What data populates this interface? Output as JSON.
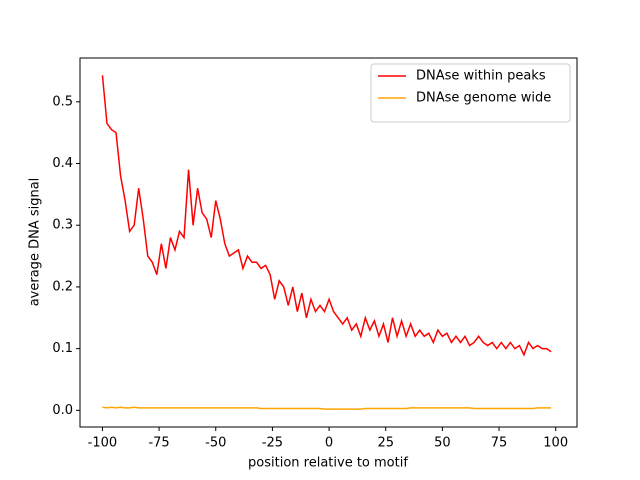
{
  "chart_data": {
    "type": "line",
    "xlabel": "position relative to motif",
    "ylabel": "average DNA signal",
    "x": [
      -100,
      -98,
      -96,
      -94,
      -92,
      -90,
      -88,
      -86,
      -84,
      -82,
      -80,
      -78,
      -76,
      -74,
      -72,
      -70,
      -68,
      -66,
      -64,
      -62,
      -60,
      -58,
      -56,
      -54,
      -52,
      -50,
      -48,
      -46,
      -44,
      -42,
      -40,
      -38,
      -36,
      -34,
      -32,
      -30,
      -28,
      -26,
      -24,
      -22,
      -20,
      -18,
      -16,
      -14,
      -12,
      -10,
      -8,
      -6,
      -4,
      -2,
      0,
      2,
      4,
      6,
      8,
      10,
      12,
      14,
      16,
      18,
      20,
      22,
      24,
      26,
      28,
      30,
      32,
      34,
      36,
      38,
      40,
      42,
      44,
      46,
      48,
      50,
      52,
      54,
      56,
      58,
      60,
      62,
      64,
      66,
      68,
      70,
      72,
      74,
      76,
      78,
      80,
      82,
      84,
      86,
      88,
      90,
      92,
      94,
      96,
      98
    ],
    "series": [
      {
        "name": "DNAse within peaks",
        "color": "#ff0000",
        "values": [
          0.543,
          0.465,
          0.455,
          0.45,
          0.38,
          0.34,
          0.29,
          0.3,
          0.36,
          0.31,
          0.25,
          0.24,
          0.22,
          0.27,
          0.23,
          0.28,
          0.26,
          0.29,
          0.28,
          0.39,
          0.3,
          0.36,
          0.32,
          0.31,
          0.28,
          0.34,
          0.31,
          0.27,
          0.25,
          0.255,
          0.26,
          0.23,
          0.25,
          0.24,
          0.24,
          0.23,
          0.235,
          0.22,
          0.18,
          0.21,
          0.2,
          0.17,
          0.2,
          0.16,
          0.19,
          0.15,
          0.18,
          0.16,
          0.17,
          0.16,
          0.18,
          0.16,
          0.15,
          0.14,
          0.15,
          0.13,
          0.14,
          0.12,
          0.15,
          0.13,
          0.145,
          0.12,
          0.14,
          0.11,
          0.15,
          0.12,
          0.145,
          0.12,
          0.14,
          0.12,
          0.13,
          0.12,
          0.125,
          0.11,
          0.13,
          0.12,
          0.125,
          0.11,
          0.12,
          0.11,
          0.12,
          0.105,
          0.11,
          0.12,
          0.11,
          0.105,
          0.11,
          0.1,
          0.11,
          0.1,
          0.11,
          0.1,
          0.105,
          0.09,
          0.11,
          0.1,
          0.105,
          0.1,
          0.1,
          0.095
        ]
      },
      {
        "name": "DNAse genome wide",
        "color": "#ffa500",
        "values": [
          0.005,
          0.004,
          0.005,
          0.004,
          0.005,
          0.004,
          0.004,
          0.005,
          0.004,
          0.004,
          0.004,
          0.004,
          0.004,
          0.004,
          0.004,
          0.004,
          0.004,
          0.004,
          0.004,
          0.004,
          0.004,
          0.004,
          0.004,
          0.004,
          0.004,
          0.004,
          0.004,
          0.004,
          0.004,
          0.004,
          0.004,
          0.004,
          0.004,
          0.004,
          0.004,
          0.003,
          0.003,
          0.003,
          0.003,
          0.003,
          0.003,
          0.003,
          0.003,
          0.003,
          0.003,
          0.003,
          0.003,
          0.003,
          0.003,
          0.002,
          0.002,
          0.002,
          0.002,
          0.002,
          0.002,
          0.002,
          0.002,
          0.002,
          0.003,
          0.003,
          0.003,
          0.003,
          0.003,
          0.003,
          0.003,
          0.003,
          0.003,
          0.003,
          0.004,
          0.004,
          0.004,
          0.004,
          0.004,
          0.004,
          0.004,
          0.004,
          0.004,
          0.004,
          0.004,
          0.004,
          0.004,
          0.004,
          0.003,
          0.003,
          0.003,
          0.003,
          0.003,
          0.003,
          0.003,
          0.003,
          0.003,
          0.003,
          0.003,
          0.003,
          0.003,
          0.003,
          0.004,
          0.004,
          0.004,
          0.004
        ]
      }
    ],
    "xlim": [
      -109.9,
      109.4
    ],
    "xticks": [
      -100,
      -75,
      -50,
      -25,
      0,
      25,
      50,
      75,
      100
    ],
    "ylim": [
      -0.027,
      0.571
    ],
    "yticks": [
      {
        "value": 0,
        "label": "0.0"
      },
      0.1,
      0.2,
      0.3,
      0.4,
      0.5
    ],
    "legend": "upper right",
    "grid": false
  }
}
